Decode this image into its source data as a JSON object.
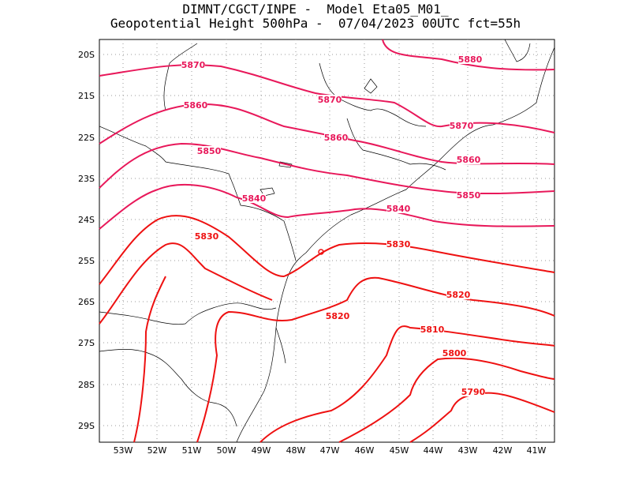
{
  "title_line1": "DIMNT/CGCT/INPE -  Model Eta05_M01_",
  "title_line2": "Geopotential Height 500hPa -  07/04/2023 00UTC fct=55h",
  "lon_labels": [
    "53W",
    "52W",
    "51W",
    "50W",
    "49W",
    "48W",
    "47W",
    "46W",
    "45W",
    "44W",
    "43W",
    "42W",
    "41W"
  ],
  "lat_labels": [
    "20S",
    "21S",
    "22S",
    "23S",
    "24S",
    "25S",
    "26S",
    "27S",
    "28S",
    "29S"
  ],
  "contour_labels": [
    "5880",
    "5870",
    "5870",
    "5870",
    "5860",
    "5860",
    "5860",
    "5850",
    "5850",
    "5840",
    "5840",
    "5830",
    "5830",
    "5820",
    "5820",
    "5810",
    "5800",
    "5790"
  ],
  "colors": {
    "contour_high": "#e8185a",
    "contour_low": "#ee1111",
    "coast": "#000000",
    "grid": "#888888"
  }
}
